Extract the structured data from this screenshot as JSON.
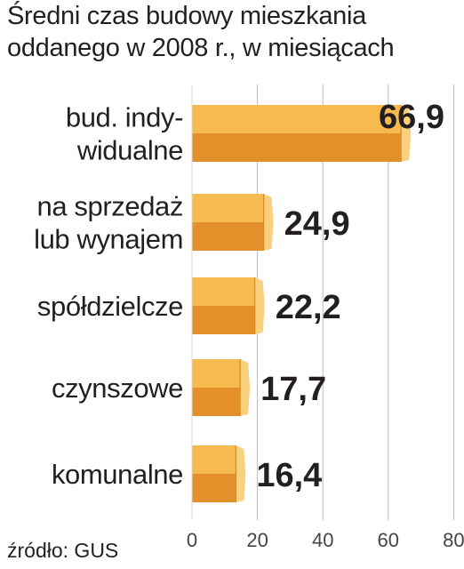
{
  "title_lines": [
    "Średni czas budowy mieszkania",
    "oddanego w 2008 r., w miesiącach"
  ],
  "source": "źródło: GUS",
  "colors": {
    "bar_top": "#f6ba4e",
    "bar_bottom": "#e3902a",
    "bar_face": "#f8d07e",
    "grid": "#b9b9b9",
    "text": "#231f20"
  },
  "chart_data": {
    "type": "bar",
    "orientation": "horizontal",
    "categories": [
      [
        "bud. indy-",
        "widualne"
      ],
      [
        "na sprzedaż",
        "lub wynajem"
      ],
      [
        "spółdzielcze"
      ],
      [
        "czynszowe"
      ],
      [
        "komunalne"
      ]
    ],
    "values": [
      66.9,
      24.9,
      22.2,
      17.7,
      16.4
    ],
    "value_labels": [
      "66,9",
      "24,9",
      "22,2",
      "17,7",
      "16,4"
    ],
    "xlim": [
      0,
      80
    ],
    "xticks": [
      "0",
      "20",
      "40",
      "60",
      "80"
    ],
    "grid": true
  }
}
